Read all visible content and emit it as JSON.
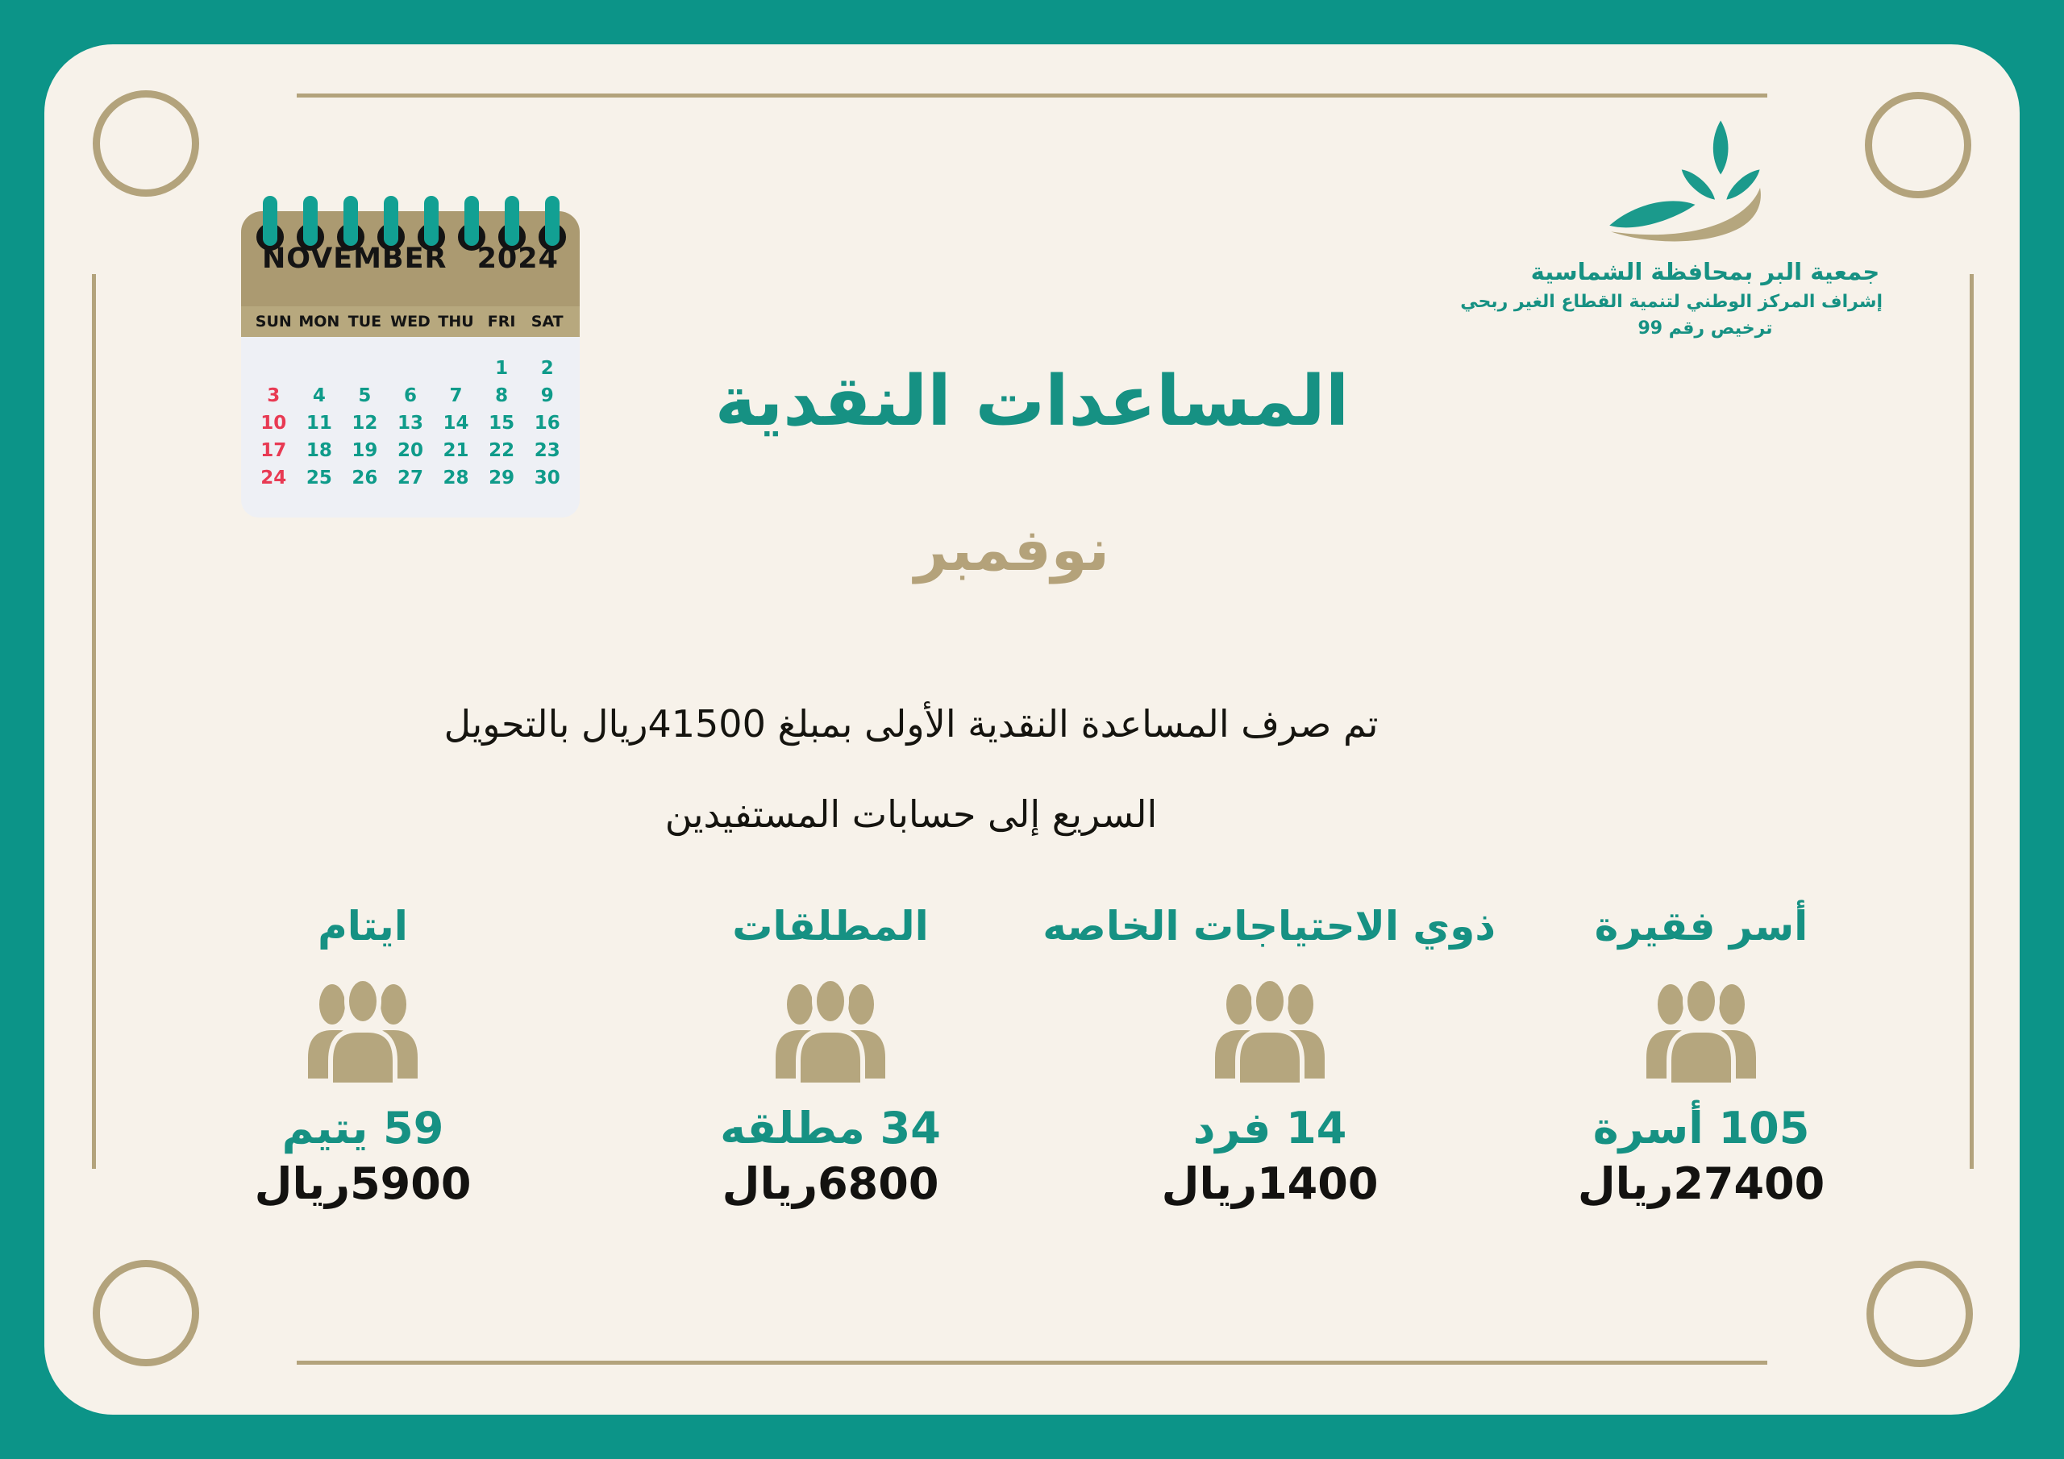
{
  "colors": {
    "frame_teal": "#0c9488",
    "panel_cream": "#f7f2ea",
    "decor_tan": "#b3a37c",
    "accent_teal": "#169183",
    "subtitle_tan": "#b4a27a",
    "calendar_header_tan": "#ab9a71",
    "calendar_dayrow_tan": "#b7a87e",
    "calendar_body": "#eef0f5",
    "calendar_date_teal": "#0f9b8a",
    "calendar_sunday_red": "#e83a53",
    "icon_tan": "#b5a67e",
    "text_black": "#15140f"
  },
  "calendar": {
    "month": "NOVEMBER",
    "year": "2024",
    "day_headers": [
      "SUN",
      "MON",
      "TUE",
      "WED",
      "THU",
      "FRI",
      "SAT"
    ],
    "weeks": [
      [
        "",
        "",
        "",
        "",
        "",
        "1",
        "2"
      ],
      [
        "3",
        "4",
        "5",
        "6",
        "7",
        "8",
        "9"
      ],
      [
        "10",
        "11",
        "12",
        "13",
        "14",
        "15",
        "16"
      ],
      [
        "17",
        "18",
        "19",
        "20",
        "21",
        "22",
        "23"
      ],
      [
        "24",
        "25",
        "26",
        "27",
        "28",
        "29",
        "30"
      ]
    ],
    "ring_count": 8
  },
  "logo": {
    "org_name": "جمعية البر بمحافظة الشماسية",
    "supervision": "إشراف المركز الوطني لتنمية القطاع الغير ربحي",
    "license": "ترخيص رقم 99"
  },
  "header": {
    "title": "المساعدات النقدية",
    "subtitle": "نوفمبر"
  },
  "description": {
    "line1": "تم صرف المساعدة النقدية الأولى بمبلغ 41500ريال بالتحويل",
    "line2": "السريع إلى حسابات المستفيدين"
  },
  "categories": [
    {
      "name": "أسر فقيرة",
      "count": "105 أسرة",
      "amount": "27400ريال"
    },
    {
      "name": "ذوي الاحتياجات الخاصه",
      "count": "14 فرد",
      "amount": "1400ريال"
    },
    {
      "name": "المطلقات",
      "count": "34 مطلقه",
      "amount": "6800ريال"
    },
    {
      "name": "ايتام",
      "count": "59 يتيم",
      "amount": "5900ريال"
    }
  ]
}
